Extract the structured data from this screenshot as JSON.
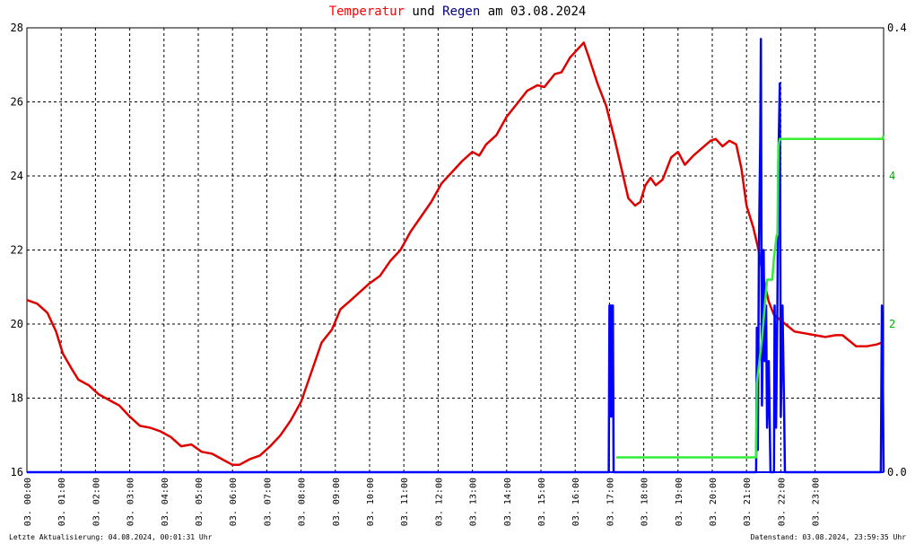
{
  "title": {
    "part1": "Temperatur",
    "part2": " und ",
    "part3": "Regen",
    "part4": " am 03.08.2024"
  },
  "footer": {
    "left": "Letzte Aktualisierung: 04.08.2024, 00:01:31 Uhr",
    "right": "Datenstand: 03.08.2024, 23:59:35 Uhr"
  },
  "chart_data": {
    "type": "line",
    "x_unit": "hours since 00:00 on 03.08.2024",
    "x_ticks": [
      "03. 00:00",
      "03. 01:00",
      "03. 02:00",
      "03. 03:00",
      "03. 04:00",
      "03. 05:00",
      "03. 06:00",
      "03. 07:00",
      "03. 08:00",
      "03. 09:00",
      "03. 10:00",
      "03. 11:00",
      "03. 12:00",
      "03. 13:00",
      "03. 14:00",
      "03. 15:00",
      "03. 16:00",
      "03. 17:00",
      "03. 18:00",
      "03. 19:00",
      "03. 20:00",
      "03. 21:00",
      "03. 22:00",
      "03. 23:00"
    ],
    "xlim": [
      0,
      24
    ],
    "y_left": {
      "ylim": [
        16,
        28
      ],
      "ticks": [
        "16",
        "18",
        "20",
        "22",
        "24",
        "26",
        "28"
      ]
    },
    "y_right_rain_rate": {
      "ylim": [
        0,
        0.4
      ],
      "ticks": [
        "0.0",
        "0.4"
      ]
    },
    "y_right_rain_total": {
      "ylim": [
        0,
        6
      ],
      "ticks": [
        "2",
        "4"
      ]
    },
    "grid": true,
    "colors": {
      "temperature": "#e00000",
      "rain_rate": "#0000ff",
      "rain_total": "#33ee33",
      "right_axis_rate": "#000000",
      "right_axis_total": "#00aa00",
      "grid": "#000000"
    },
    "series": [
      {
        "key": "temperature",
        "axis": "left",
        "points": [
          [
            0,
            20.65
          ],
          [
            0.3,
            20.55
          ],
          [
            0.6,
            20.3
          ],
          [
            0.85,
            19.8
          ],
          [
            1.05,
            19.2
          ],
          [
            1.3,
            18.8
          ],
          [
            1.5,
            18.5
          ],
          [
            1.8,
            18.35
          ],
          [
            2.1,
            18.1
          ],
          [
            2.4,
            17.95
          ],
          [
            2.7,
            17.8
          ],
          [
            3.0,
            17.5
          ],
          [
            3.3,
            17.25
          ],
          [
            3.6,
            17.2
          ],
          [
            3.9,
            17.1
          ],
          [
            4.2,
            16.95
          ],
          [
            4.5,
            16.7
          ],
          [
            4.8,
            16.75
          ],
          [
            5.1,
            16.55
          ],
          [
            5.4,
            16.5
          ],
          [
            5.7,
            16.35
          ],
          [
            6.0,
            16.2
          ],
          [
            6.2,
            16.2
          ],
          [
            6.5,
            16.35
          ],
          [
            6.8,
            16.45
          ],
          [
            7.1,
            16.7
          ],
          [
            7.4,
            17.0
          ],
          [
            7.7,
            17.4
          ],
          [
            8.0,
            17.9
          ],
          [
            8.3,
            18.7
          ],
          [
            8.6,
            19.5
          ],
          [
            8.9,
            19.85
          ],
          [
            9.15,
            20.4
          ],
          [
            9.4,
            20.6
          ],
          [
            9.7,
            20.85
          ],
          [
            10.0,
            21.1
          ],
          [
            10.3,
            21.3
          ],
          [
            10.6,
            21.7
          ],
          [
            10.9,
            22.0
          ],
          [
            11.2,
            22.5
          ],
          [
            11.5,
            22.9
          ],
          [
            11.8,
            23.3
          ],
          [
            12.1,
            23.8
          ],
          [
            12.4,
            24.1
          ],
          [
            12.7,
            24.4
          ],
          [
            13.0,
            24.65
          ],
          [
            13.2,
            24.55
          ],
          [
            13.4,
            24.85
          ],
          [
            13.7,
            25.1
          ],
          [
            14.0,
            25.6
          ],
          [
            14.3,
            25.95
          ],
          [
            14.6,
            26.3
          ],
          [
            14.9,
            26.45
          ],
          [
            15.1,
            26.4
          ],
          [
            15.4,
            26.75
          ],
          [
            15.6,
            26.8
          ],
          [
            15.85,
            27.2
          ],
          [
            16.1,
            27.45
          ],
          [
            16.25,
            27.6
          ],
          [
            16.4,
            27.2
          ],
          [
            16.65,
            26.5
          ],
          [
            16.9,
            25.9
          ],
          [
            17.15,
            25.0
          ],
          [
            17.35,
            24.2
          ],
          [
            17.55,
            23.4
          ],
          [
            17.75,
            23.2
          ],
          [
            17.9,
            23.3
          ],
          [
            18.05,
            23.75
          ],
          [
            18.2,
            23.95
          ],
          [
            18.35,
            23.75
          ],
          [
            18.55,
            23.9
          ],
          [
            18.8,
            24.5
          ],
          [
            19.0,
            24.65
          ],
          [
            19.2,
            24.3
          ],
          [
            19.45,
            24.55
          ],
          [
            19.7,
            24.75
          ],
          [
            19.95,
            24.95
          ],
          [
            20.1,
            25.0
          ],
          [
            20.3,
            24.8
          ],
          [
            20.5,
            24.95
          ],
          [
            20.7,
            24.85
          ],
          [
            20.85,
            24.2
          ],
          [
            21.0,
            23.2
          ],
          [
            21.2,
            22.6
          ],
          [
            21.35,
            22.0
          ],
          [
            21.5,
            21.2
          ],
          [
            21.65,
            20.6
          ],
          [
            21.8,
            20.25
          ],
          [
            22.0,
            20.1
          ],
          [
            22.2,
            19.95
          ],
          [
            22.4,
            19.8
          ],
          [
            22.7,
            19.75
          ],
          [
            23.0,
            19.7
          ],
          [
            23.3,
            19.65
          ],
          [
            23.6,
            19.7
          ],
          [
            23.8,
            19.7
          ],
          [
            24.0,
            19.55
          ],
          [
            24.2,
            19.4
          ],
          [
            24.5,
            19.4
          ],
          [
            24.8,
            19.45
          ],
          [
            24.95,
            19.5
          ],
          [
            25.0,
            19.5
          ]
        ]
      },
      {
        "key": "rain_rate",
        "axis": "right_rate",
        "points": [
          [
            0,
            0
          ],
          [
            16.98,
            0
          ],
          [
            17.0,
            0.15
          ],
          [
            17.03,
            0.15
          ],
          [
            17.05,
            0.05
          ],
          [
            17.08,
            0.15
          ],
          [
            17.1,
            0.15
          ],
          [
            17.12,
            0
          ],
          [
            21.28,
            0
          ],
          [
            21.3,
            0.13
          ],
          [
            21.33,
            0.02
          ],
          [
            21.36,
            0.2
          ],
          [
            21.4,
            0.3
          ],
          [
            21.42,
            0.39
          ],
          [
            21.45,
            0.06
          ],
          [
            21.5,
            0.2
          ],
          [
            21.53,
            0.1
          ],
          [
            21.57,
            0.15
          ],
          [
            21.6,
            0.04
          ],
          [
            21.65,
            0.1
          ],
          [
            21.7,
            0
          ],
          [
            21.8,
            0
          ],
          [
            21.82,
            0.15
          ],
          [
            21.86,
            0.04
          ],
          [
            21.9,
            0.15
          ],
          [
            21.93,
            0.28
          ],
          [
            21.97,
            0.35
          ],
          [
            22.0,
            0.05
          ],
          [
            22.05,
            0.15
          ],
          [
            22.1,
            0.05
          ],
          [
            22.12,
            0
          ],
          [
            24.92,
            0
          ],
          [
            24.95,
            0.15
          ],
          [
            24.98,
            0.08
          ],
          [
            25.0,
            0
          ]
        ]
      },
      {
        "key": "rain_total",
        "axis": "right_total",
        "points": [
          [
            17.2,
            0.2
          ],
          [
            21.25,
            0.2
          ],
          [
            21.28,
            0.2
          ],
          [
            21.3,
            1.2
          ],
          [
            21.45,
            1.8
          ],
          [
            21.6,
            2.6
          ],
          [
            21.75,
            2.6
          ],
          [
            21.8,
            2.9
          ],
          [
            21.88,
            3.2
          ],
          [
            21.9,
            3.2
          ],
          [
            21.93,
            4.4
          ],
          [
            21.97,
            4.5
          ],
          [
            22.05,
            4.5
          ],
          [
            24.97,
            4.5
          ],
          [
            25.0,
            4.55
          ]
        ]
      }
    ]
  }
}
